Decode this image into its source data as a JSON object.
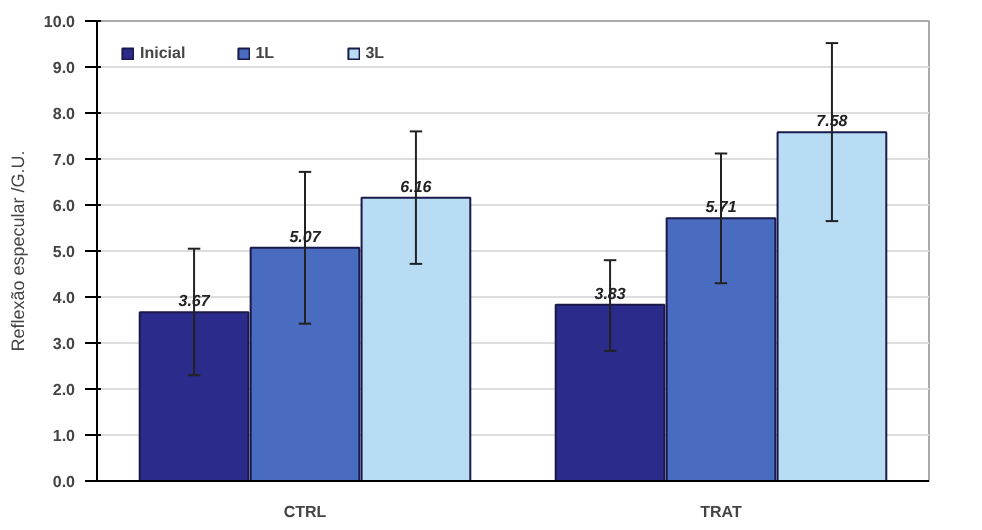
{
  "chart_data": {
    "type": "bar",
    "ylabel": "Reflexão especular /G.U.",
    "categories": [
      "CTRL",
      "TRAT"
    ],
    "series": [
      {
        "name": "Inicial",
        "color": "#2b2b8c",
        "values": [
          3.67,
          3.83
        ],
        "errors": [
          [
            2.3,
            5.05
          ],
          [
            2.83,
            4.8
          ]
        ]
      },
      {
        "name": "1L",
        "color": "#4a6cc0",
        "values": [
          5.07,
          5.71
        ],
        "errors": [
          [
            3.42,
            6.72
          ],
          [
            4.3,
            7.12
          ]
        ]
      },
      {
        "name": "3L",
        "color": "#b8dcf4",
        "values": [
          6.16,
          7.58
        ],
        "errors": [
          [
            4.72,
            7.6
          ],
          [
            5.65,
            9.52
          ]
        ]
      }
    ],
    "ylim": [
      0,
      10
    ],
    "yticks": [
      {
        "value": 0,
        "label": "0.0"
      },
      {
        "value": 1,
        "label": "1.0"
      },
      {
        "value": 2,
        "label": "2.0"
      },
      {
        "value": 3,
        "label": "3.0"
      },
      {
        "value": 4,
        "label": "4.0"
      },
      {
        "value": 5,
        "label": "5.0"
      },
      {
        "value": 6,
        "label": "6.0"
      },
      {
        "value": 7,
        "label": "7.0"
      },
      {
        "value": 8,
        "label": "8.0"
      },
      {
        "value": 9,
        "label": "9.0"
      },
      {
        "value": 10,
        "label": "10.0"
      }
    ],
    "grid": "y",
    "legend": "top left",
    "data_labels": true
  }
}
